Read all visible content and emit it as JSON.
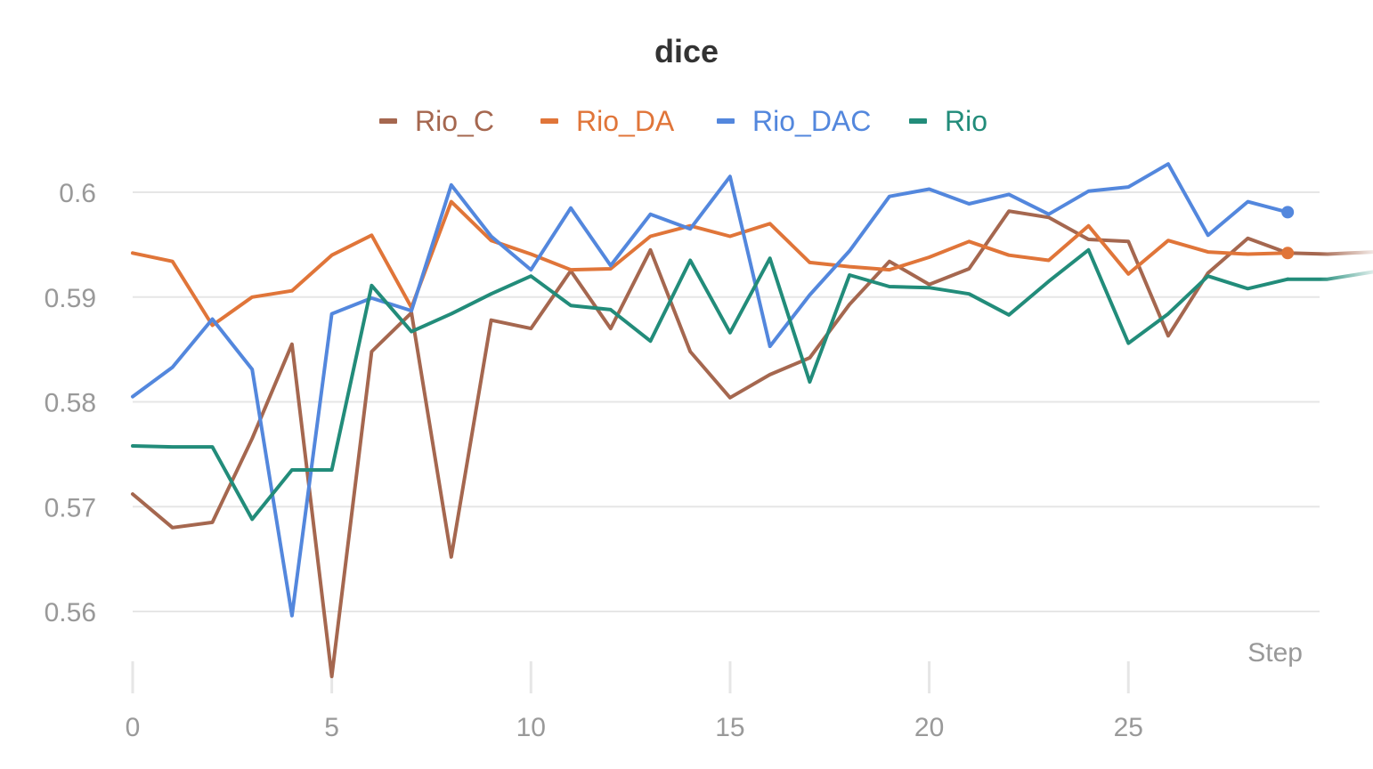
{
  "chart_data": {
    "type": "line",
    "title": "dice",
    "xlabel": "Step",
    "ylabel": "",
    "xlim": [
      0,
      29.8
    ],
    "ylim": [
      0.5535,
      0.6035
    ],
    "x_ticks": [
      0,
      5,
      10,
      15,
      20,
      25
    ],
    "y_ticks": [
      0.56,
      0.57,
      0.58,
      0.59,
      0.6
    ],
    "y_tick_labels": [
      "0.56",
      "0.57",
      "0.58",
      "0.59",
      "0.6"
    ],
    "grid": true,
    "legend_position": "top-center",
    "x": [
      0,
      1,
      2,
      3,
      4,
      5,
      6,
      7,
      8,
      9,
      10,
      11,
      12,
      13,
      14,
      15,
      16,
      17,
      18,
      19,
      20,
      21,
      22,
      23,
      24,
      25,
      26,
      27,
      28,
      29
    ],
    "series": [
      {
        "name": "Rio_C",
        "color": "#a5674f",
        "values": [
          0.5712,
          0.568,
          0.5685,
          0.5765,
          0.5855,
          0.5538,
          0.5848,
          0.5885,
          0.5652,
          0.5878,
          0.587,
          0.5925,
          0.587,
          0.5945,
          0.5848,
          0.5804,
          0.5826,
          0.5842,
          0.5893,
          0.5934,
          0.5912,
          0.5927,
          0.5982,
          0.5976,
          0.5955,
          0.5953,
          0.5863,
          0.5923,
          0.5956,
          0.5942
        ],
        "tail": [
          0.5941,
          0.5943
        ]
      },
      {
        "name": "Rio_DA",
        "color": "#e07539",
        "values": [
          0.5942,
          0.5934,
          0.5873,
          0.59,
          0.5906,
          0.594,
          0.5959,
          0.589,
          0.5991,
          0.5954,
          0.5941,
          0.5926,
          0.5927,
          0.5958,
          0.5968,
          0.5958,
          0.597,
          0.5933,
          0.5929,
          0.5926,
          0.5938,
          0.5953,
          0.594,
          0.5935,
          0.5968,
          0.5922,
          0.5954,
          0.5943,
          0.5941,
          0.5942
        ],
        "marker": "last"
      },
      {
        "name": "Rio_DAC",
        "color": "#5387dd",
        "values": [
          0.5805,
          0.5833,
          0.5879,
          0.5831,
          0.5596,
          0.5884,
          0.5899,
          0.5887,
          0.6007,
          0.5958,
          0.5926,
          0.5985,
          0.593,
          0.5979,
          0.5965,
          0.6015,
          0.5853,
          0.5902,
          0.5944,
          0.5996,
          0.6003,
          0.5989,
          0.5998,
          0.5979,
          0.6001,
          0.6005,
          0.6027,
          0.5959,
          0.5991,
          0.5981
        ],
        "marker": "last"
      },
      {
        "name": "Rio",
        "color": "#228c7a",
        "values": [
          0.5758,
          0.5757,
          0.5757,
          0.5688,
          0.5735,
          0.5735,
          0.5911,
          0.5867,
          0.5884,
          0.5903,
          0.592,
          0.5892,
          0.5888,
          0.5858,
          0.5935,
          0.5866,
          0.5937,
          0.5819,
          0.5921,
          0.591,
          0.5909,
          0.5903,
          0.5883,
          0.5915,
          0.5945,
          0.5856,
          0.5884,
          0.592,
          0.5908,
          0.5917
        ],
        "tail": [
          0.5917,
          0.5924
        ]
      }
    ]
  }
}
